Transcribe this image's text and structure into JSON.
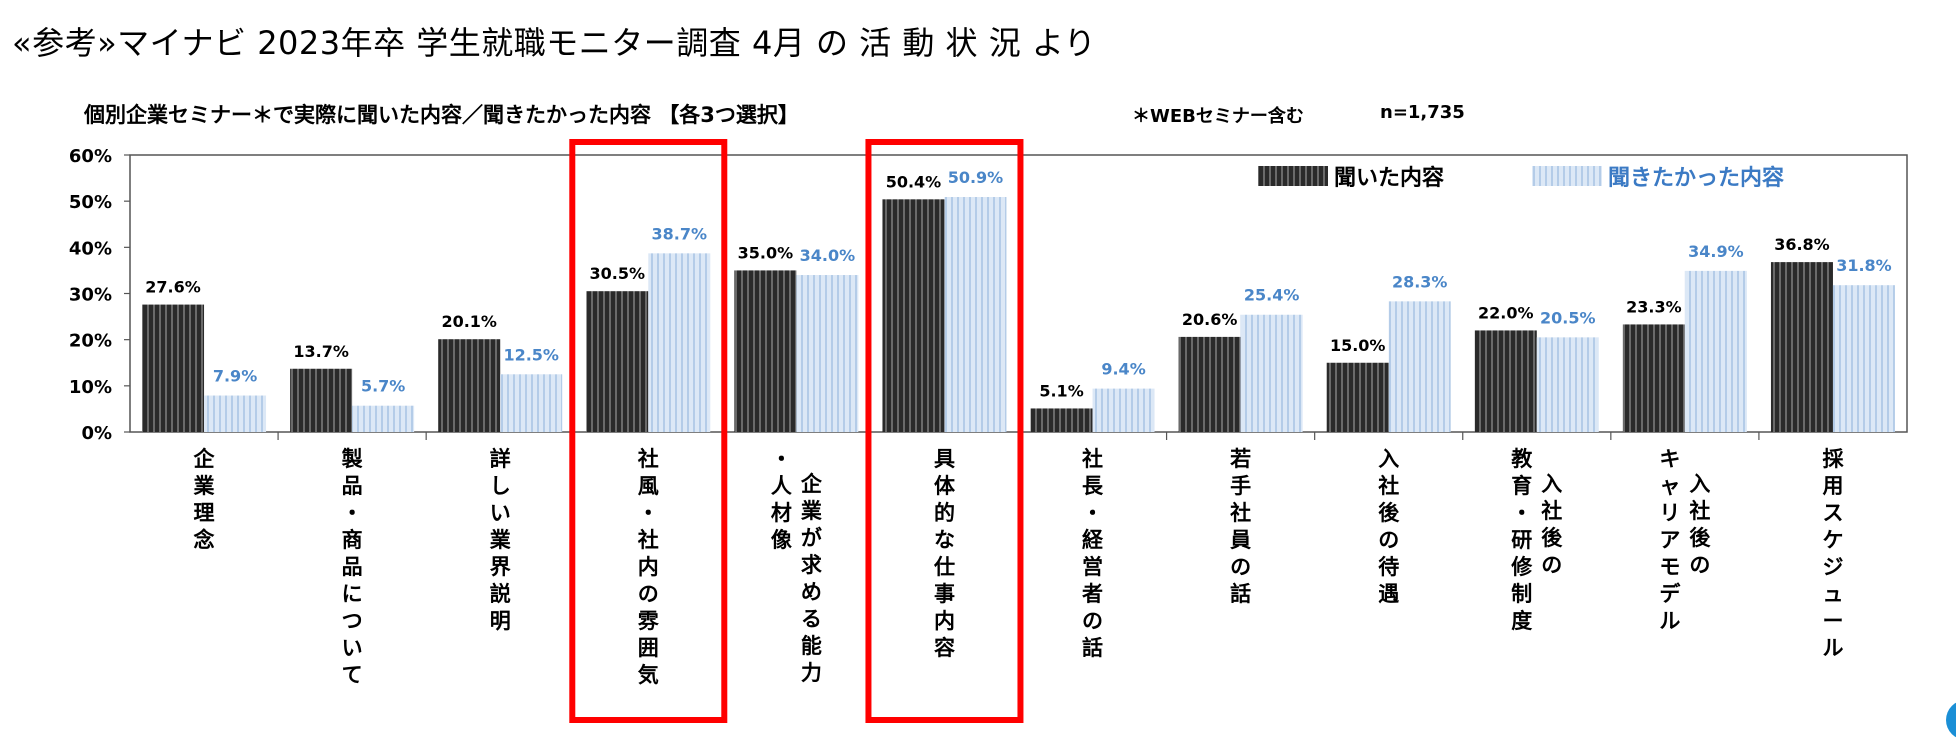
{
  "page": {
    "heading": "«参考»マイナビ 2023年卒 学生就職モニター調査 4月 の 活 動 状 況 より"
  },
  "chart_data": {
    "type": "bar",
    "title": "個別企業セミナー＊で実際に聞いた内容／聞きたかった内容 【各3つ選択】",
    "note": "＊WEBセミナー含む",
    "sample": "n=1,735",
    "ylim": [
      0,
      60
    ],
    "yticks": [
      "0%",
      "10%",
      "20%",
      "30%",
      "40%",
      "50%",
      "60%"
    ],
    "grid": false,
    "legend_position": "top-right",
    "categories": [
      [
        "企業理念"
      ],
      [
        "製品・商品について"
      ],
      [
        "詳しい業界説明"
      ],
      [
        "社風・社内の雰囲気"
      ],
      [
        "企業が求める能力",
        "・人材像"
      ],
      [
        "具体的な仕事内容"
      ],
      [
        "社長・経営者の話"
      ],
      [
        "若手社員の話"
      ],
      [
        "入社後の待遇"
      ],
      [
        "入社後の",
        "教育・研修制度"
      ],
      [
        "入社後の",
        "キャリアモデル"
      ],
      [
        "採用スケジュール"
      ]
    ],
    "series": [
      {
        "name": "聞いた内容",
        "color": "#333333",
        "values": [
          27.6,
          13.7,
          20.1,
          30.5,
          35.0,
          50.4,
          5.1,
          20.6,
          15.0,
          22.0,
          23.3,
          36.8
        ],
        "labels": [
          "27.6%",
          "13.7%",
          "20.1%",
          "30.5%",
          "35.0%",
          "50.4%",
          "5.1%",
          "20.6%",
          "15.0%",
          "22.0%",
          "23.3%",
          "36.8%"
        ]
      },
      {
        "name": "聞きたかった内容",
        "color": "#c9dcf2",
        "values": [
          7.9,
          5.7,
          12.5,
          38.7,
          34.0,
          50.9,
          9.4,
          25.4,
          28.3,
          20.5,
          34.9,
          31.8
        ],
        "labels": [
          "7.9%",
          "5.7%",
          "12.5%",
          "38.7%",
          "34.0%",
          "50.9%",
          "9.4%",
          "25.4%",
          "28.3%",
          "20.5%",
          "34.9%",
          "31.8%"
        ]
      }
    ],
    "highlighted_categories": [
      3,
      5
    ],
    "highlight_color": "#ff0000"
  }
}
